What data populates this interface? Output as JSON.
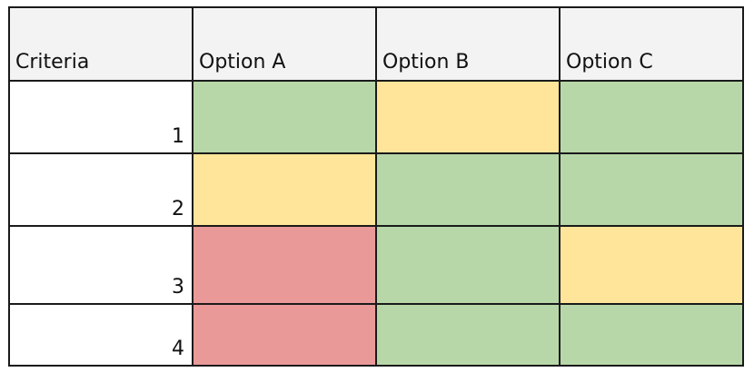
{
  "colors": {
    "green": "#b7d7a8",
    "yellow": "#ffe599",
    "red": "#ea9999",
    "header_bg": "#f3f3f3"
  },
  "table": {
    "header": {
      "criteria": "Criteria",
      "option_a": "Option A",
      "option_b": "Option B",
      "option_c": "Option C"
    },
    "rows": [
      {
        "criterion": "1",
        "option_a": "green",
        "option_b": "yellow",
        "option_c": "green"
      },
      {
        "criterion": "2",
        "option_a": "yellow",
        "option_b": "green",
        "option_c": "green"
      },
      {
        "criterion": "3",
        "option_a": "red",
        "option_b": "green",
        "option_c": "yellow"
      },
      {
        "criterion": "4",
        "option_a": "red",
        "option_b": "green",
        "option_c": "green"
      }
    ]
  }
}
